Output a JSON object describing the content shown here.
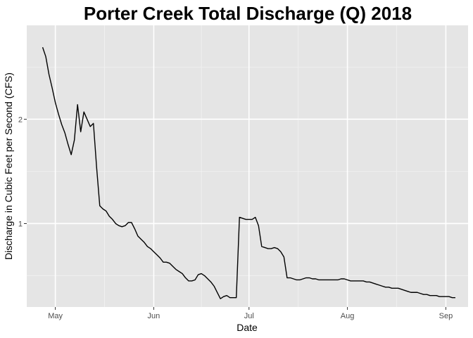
{
  "chart_data": {
    "type": "line",
    "title": "Porter Creek Total Discharge (Q) 2018",
    "xlabel": "Date",
    "ylabel": "Discharge in Cubic Feet per Second (CFS)",
    "xlim": [
      "2018-04-22",
      "2018-09-08"
    ],
    "ylim": [
      0.2,
      2.9
    ],
    "x_ticks": [
      {
        "date": "2018-05-01",
        "label": "May"
      },
      {
        "date": "2018-06-01",
        "label": "Jun"
      },
      {
        "date": "2018-07-01",
        "label": "Jul"
      },
      {
        "date": "2018-08-01",
        "label": "Aug"
      },
      {
        "date": "2018-09-01",
        "label": "Sep"
      }
    ],
    "y_ticks": [
      {
        "value": 1,
        "label": "1"
      },
      {
        "value": 2,
        "label": "2"
      }
    ],
    "grid": true,
    "line_color": "#000000",
    "series": [
      {
        "x": [
          "2018-04-27",
          "2018-04-28",
          "2018-04-29",
          "2018-04-30",
          "2018-05-01",
          "2018-05-02",
          "2018-05-03",
          "2018-05-04",
          "2018-05-05",
          "2018-05-06",
          "2018-05-07",
          "2018-05-08",
          "2018-05-09",
          "2018-05-10",
          "2018-05-11",
          "2018-05-12",
          "2018-05-13",
          "2018-05-14",
          "2018-05-15",
          "2018-05-16",
          "2018-05-17",
          "2018-05-18",
          "2018-05-19",
          "2018-05-20",
          "2018-05-21",
          "2018-05-22",
          "2018-05-23",
          "2018-05-24",
          "2018-05-25",
          "2018-05-26",
          "2018-05-27",
          "2018-05-28",
          "2018-05-29",
          "2018-05-30",
          "2018-05-31",
          "2018-06-01",
          "2018-06-02",
          "2018-06-03",
          "2018-06-04",
          "2018-06-05",
          "2018-06-06",
          "2018-06-07",
          "2018-06-08",
          "2018-06-09",
          "2018-06-10",
          "2018-06-11",
          "2018-06-12",
          "2018-06-13",
          "2018-06-14",
          "2018-06-15",
          "2018-06-16",
          "2018-06-17",
          "2018-06-18",
          "2018-06-19",
          "2018-06-20",
          "2018-06-21",
          "2018-06-22",
          "2018-06-23",
          "2018-06-24",
          "2018-06-25",
          "2018-06-26",
          "2018-06-27",
          "2018-06-28",
          "2018-06-29",
          "2018-06-30",
          "2018-07-01",
          "2018-07-02",
          "2018-07-03",
          "2018-07-04",
          "2018-07-05",
          "2018-07-06",
          "2018-07-07",
          "2018-07-08",
          "2018-07-09",
          "2018-07-10",
          "2018-07-11",
          "2018-07-12",
          "2018-07-13",
          "2018-07-14",
          "2018-07-15",
          "2018-07-16",
          "2018-07-17",
          "2018-07-18",
          "2018-07-19",
          "2018-07-20",
          "2018-07-21",
          "2018-07-22",
          "2018-07-23",
          "2018-07-24",
          "2018-07-25",
          "2018-07-26",
          "2018-07-27",
          "2018-07-28",
          "2018-07-29",
          "2018-07-30",
          "2018-07-31",
          "2018-08-01",
          "2018-08-02",
          "2018-08-03",
          "2018-08-04",
          "2018-08-05",
          "2018-08-06",
          "2018-08-07",
          "2018-08-08",
          "2018-08-09",
          "2018-08-10",
          "2018-08-11",
          "2018-08-12",
          "2018-08-13",
          "2018-08-14",
          "2018-08-15",
          "2018-08-16",
          "2018-08-17",
          "2018-08-18",
          "2018-08-19",
          "2018-08-20",
          "2018-08-21",
          "2018-08-22",
          "2018-08-23",
          "2018-08-24",
          "2018-08-25",
          "2018-08-26",
          "2018-08-27",
          "2018-08-28",
          "2018-08-29",
          "2018-08-30",
          "2018-08-31",
          "2018-09-01",
          "2018-09-02",
          "2018-09-03",
          "2018-09-04"
        ],
        "y": [
          2.69,
          2.6,
          2.43,
          2.3,
          2.16,
          2.05,
          1.95,
          1.87,
          1.76,
          1.66,
          1.8,
          2.14,
          1.88,
          2.07,
          2.0,
          1.93,
          1.96,
          1.54,
          1.17,
          1.14,
          1.12,
          1.07,
          1.04,
          1.0,
          0.98,
          0.97,
          0.98,
          1.01,
          1.01,
          0.95,
          0.88,
          0.85,
          0.82,
          0.78,
          0.76,
          0.73,
          0.7,
          0.67,
          0.63,
          0.63,
          0.62,
          0.59,
          0.56,
          0.54,
          0.52,
          0.48,
          0.45,
          0.45,
          0.46,
          0.51,
          0.52,
          0.5,
          0.47,
          0.44,
          0.4,
          0.34,
          0.28,
          0.3,
          0.31,
          0.29,
          0.29,
          0.29,
          1.06,
          1.05,
          1.04,
          1.04,
          1.04,
          1.06,
          0.98,
          0.78,
          0.77,
          0.76,
          0.76,
          0.77,
          0.76,
          0.73,
          0.68,
          0.48,
          0.48,
          0.47,
          0.46,
          0.46,
          0.47,
          0.48,
          0.48,
          0.47,
          0.47,
          0.46,
          0.46,
          0.46,
          0.46,
          0.46,
          0.46,
          0.46,
          0.47,
          0.47,
          0.46,
          0.45,
          0.45,
          0.45,
          0.45,
          0.45,
          0.44,
          0.44,
          0.43,
          0.42,
          0.41,
          0.4,
          0.39,
          0.39,
          0.38,
          0.38,
          0.38,
          0.37,
          0.36,
          0.35,
          0.34,
          0.34,
          0.34,
          0.33,
          0.32,
          0.32,
          0.31,
          0.31,
          0.31,
          0.3,
          0.3,
          0.3,
          0.3,
          0.29,
          0.29
        ]
      }
    ]
  }
}
